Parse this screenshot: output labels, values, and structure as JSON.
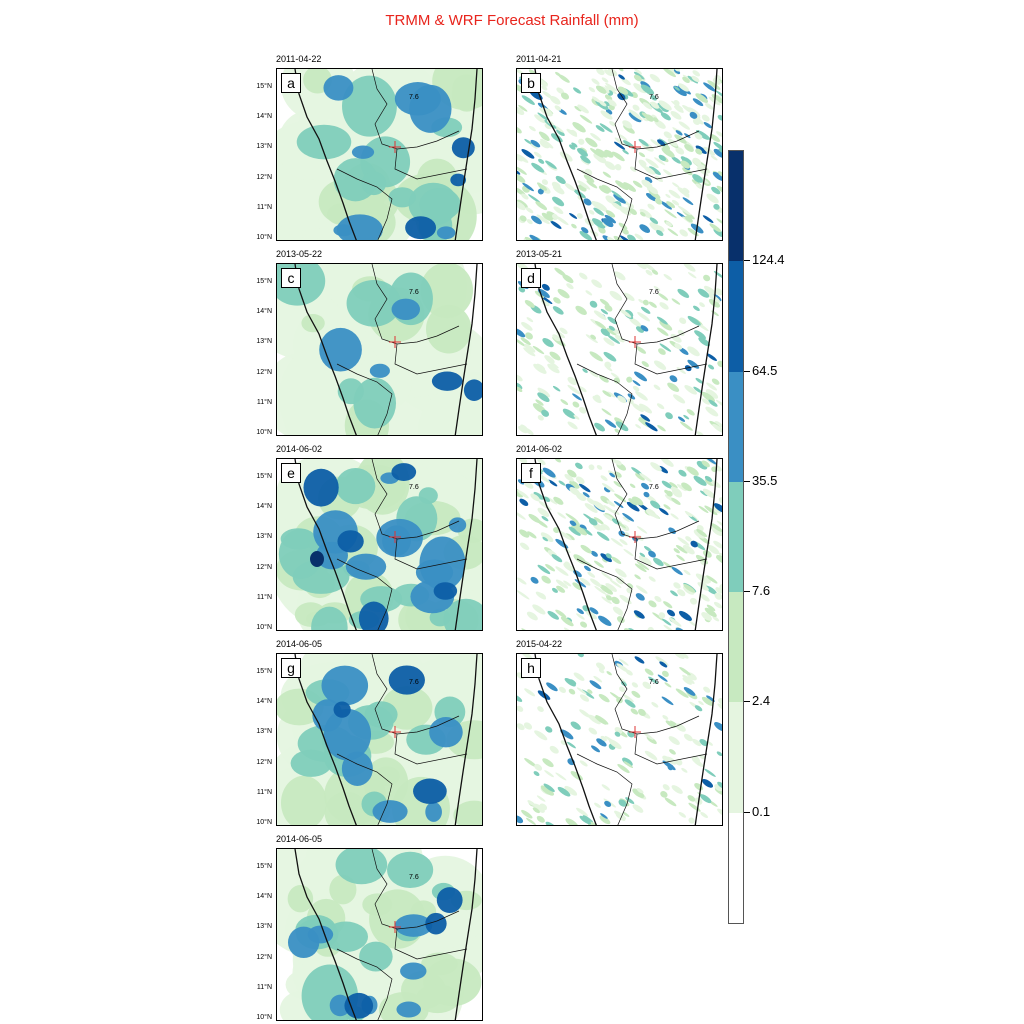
{
  "title": "TRMM & WRF Forecast Rainfall (mm)",
  "lat_labels": [
    "15°N",
    "14°N",
    "13°N",
    "12°N",
    "11°N",
    "10°N"
  ],
  "contour_label": "7.6",
  "panels": [
    {
      "letter": "a",
      "date": "2011-04-22",
      "style": "smooth",
      "intensity": 0.55
    },
    {
      "letter": "b",
      "date": "2011-04-21",
      "style": "speckled",
      "intensity": 0.75
    },
    {
      "letter": "c",
      "date": "2013-05-22",
      "style": "smooth",
      "intensity": 0.25
    },
    {
      "letter": "d",
      "date": "2013-05-21",
      "style": "speckled",
      "intensity": 0.3
    },
    {
      "letter": "e",
      "date": "2014-06-02",
      "style": "smooth",
      "intensity": 0.8
    },
    {
      "letter": "f",
      "date": "2014-06-02",
      "style": "speckled",
      "intensity": 0.55
    },
    {
      "letter": "g",
      "date": "2014-06-05",
      "style": "smooth",
      "intensity": 0.55
    },
    {
      "letter": "h",
      "date": "2015-04-22",
      "style": "speckled",
      "intensity": 0.25
    },
    {
      "letter": "",
      "date": "2014-06-05",
      "style": "smooth",
      "intensity": 0.55
    }
  ],
  "colorbar": {
    "colors": [
      "#ffffff",
      "#e5f5e0",
      "#c7e9c0",
      "#7fcdbb",
      "#3a8fc4",
      "#0d5ea6",
      "#08306b"
    ],
    "labels": [
      "0.1",
      "2.4",
      "7.6",
      "35.5",
      "64.5",
      "124.4"
    ]
  }
}
